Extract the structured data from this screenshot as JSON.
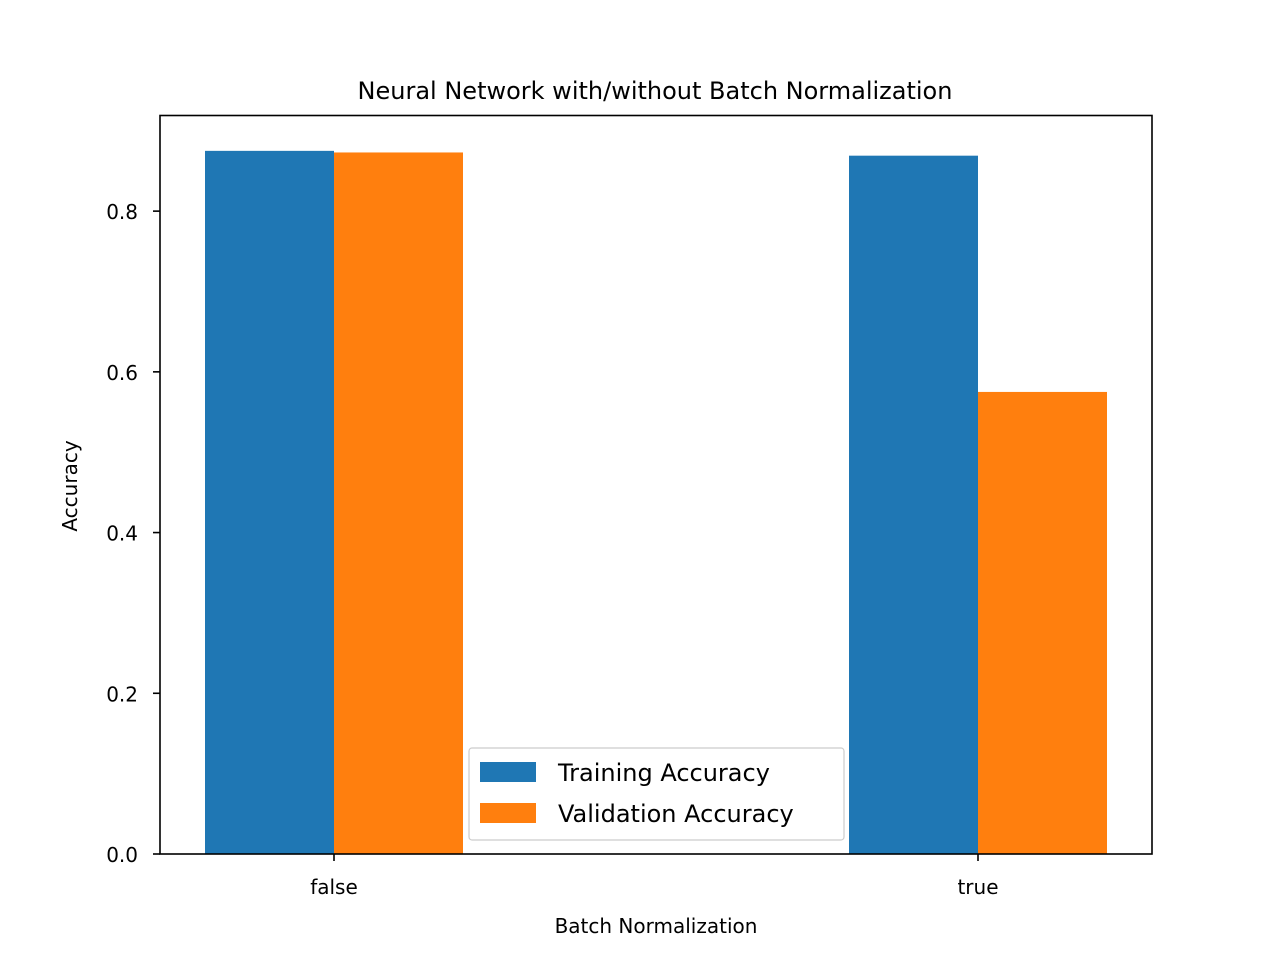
{
  "chart_data": {
    "type": "bar",
    "title": "Neural Network with/without Batch Normalization",
    "xlabel": "Batch Normalization",
    "ylabel": "Accuracy",
    "categories": [
      "false",
      "true"
    ],
    "series": [
      {
        "name": "Training Accuracy",
        "values": [
          0.875,
          0.869
        ],
        "color": "#1f77b4"
      },
      {
        "name": "Validation Accuracy",
        "values": [
          0.873,
          0.575
        ],
        "color": "#ff7f0e"
      }
    ],
    "ylim": [
      0,
      0.919
    ],
    "yticks": [
      0.0,
      0.2,
      0.4,
      0.6,
      0.8
    ],
    "ytick_labels": [
      "0.0",
      "0.2",
      "0.4",
      "0.6",
      "0.8"
    ],
    "grid": false,
    "legend_position": "lower center"
  }
}
